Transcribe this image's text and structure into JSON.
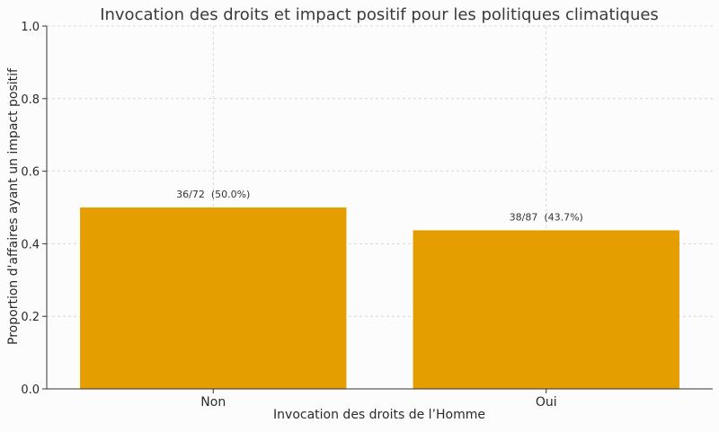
{
  "chart_data": {
    "type": "bar",
    "title": "Invocation des droits et impact positif pour les politiques climatiques",
    "xlabel": "Invocation des droits de l’Homme",
    "ylabel": "Proportion d'affaires ayant un impact positif",
    "categories": [
      "Non",
      "Oui"
    ],
    "values": [
      0.5,
      0.437
    ],
    "data_labels": [
      "36/72  (50.0%)",
      "38/87  (43.7%)"
    ],
    "ylim": [
      0,
      1.0
    ],
    "yticks": [
      0.0,
      0.2,
      0.4,
      0.6,
      0.8,
      1.0
    ],
    "ytick_labels": [
      "0.0",
      "0.2",
      "0.4",
      "0.6",
      "0.8",
      "1.0"
    ],
    "grid": true,
    "bar_color": "#e49e00"
  }
}
